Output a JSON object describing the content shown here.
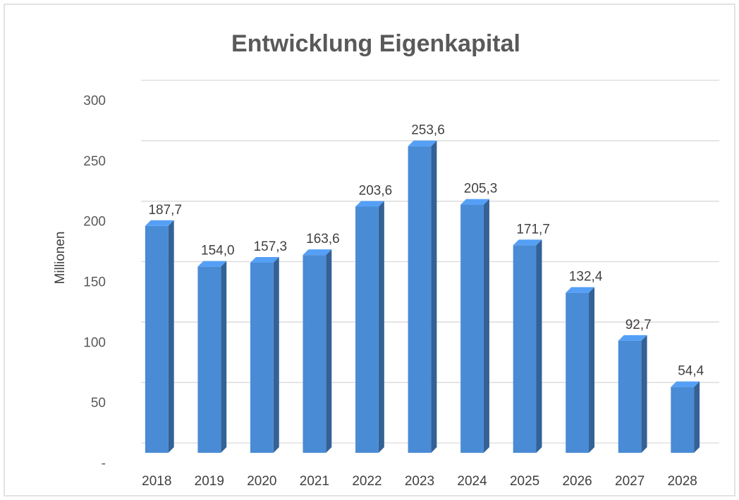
{
  "chart_data": {
    "type": "bar",
    "title": "Entwicklung Eigenkapital",
    "y_label": "Millionen",
    "categories": [
      "2018",
      "2019",
      "2020",
      "2021",
      "2022",
      "2023",
      "2024",
      "2025",
      "2026",
      "2027",
      "2028"
    ],
    "values": [
      187.7,
      154.0,
      157.3,
      163.6,
      203.6,
      253.6,
      205.3,
      171.7,
      132.4,
      92.7,
      54.4
    ],
    "value_labels": [
      "187,7",
      "154,0",
      "157,3",
      "163,6",
      "203,6",
      "253,6",
      "205,3",
      "171,7",
      "132,4",
      "92,7",
      "54,4"
    ],
    "color": "#4a8bd6",
    "ylim": [
      0,
      300
    ],
    "yticks": [
      {
        "value": 0,
        "label": "-"
      },
      50,
      100,
      150,
      200,
      250,
      300
    ],
    "grid": true
  }
}
